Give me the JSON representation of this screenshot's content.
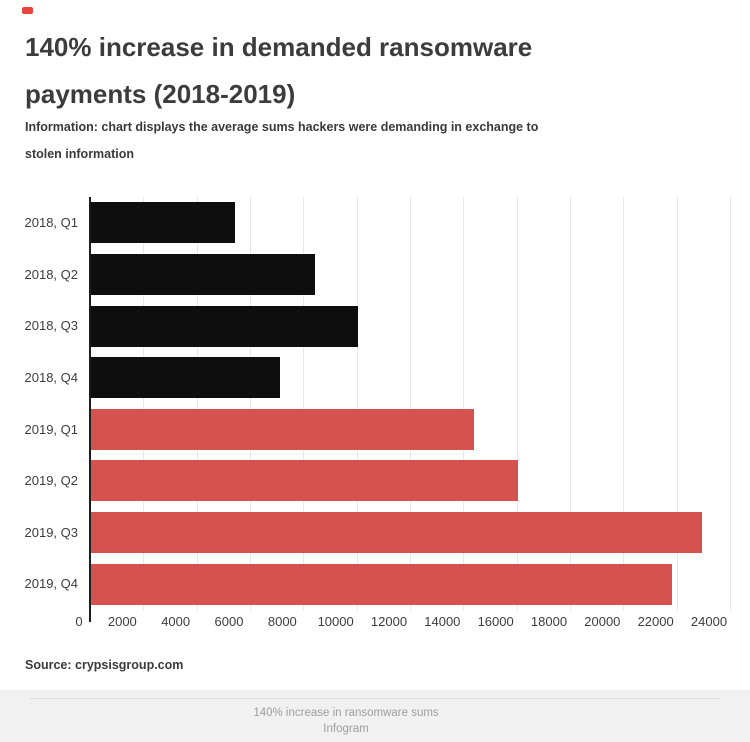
{
  "header": {
    "title_line1": "140% increase in demanded ransomware",
    "title_line2": "payments (2018-2019)",
    "subtitle_line1": "Information: chart displays the average sums hackers were demanding in exchange to",
    "subtitle_line2": "stolen information"
  },
  "chart_data": {
    "type": "bar",
    "orientation": "horizontal",
    "title": "140% increase in demanded ransomware payments (2018-2019)",
    "categories": [
      "2018, Q1",
      "2018, Q2",
      "2018, Q3",
      "2018, Q4",
      "2019, Q1",
      "2019, Q2",
      "2019, Q3",
      "2019, Q4"
    ],
    "values": [
      5400,
      8400,
      10000,
      7100,
      14350,
      16000,
      22900,
      21800
    ],
    "series_colors": {
      "2018": "#0e0e0e",
      "2019": "#d5534f"
    },
    "xlim": [
      0,
      24000
    ],
    "x_tick_step": 2000,
    "x_tick_labels": [
      "0",
      "2000",
      "4000",
      "6000",
      "8000",
      "10000",
      "12000",
      "14000",
      "16000",
      "18000",
      "20000",
      "22000",
      "24000"
    ],
    "grid": "vertical",
    "gridline_color": "#e7e7e7",
    "legend": "none"
  },
  "footer": {
    "source": "Source: crypsisgroup.com",
    "attribution_title": "140% increase in ransomware sums",
    "attribution_brand": "Infogram"
  }
}
